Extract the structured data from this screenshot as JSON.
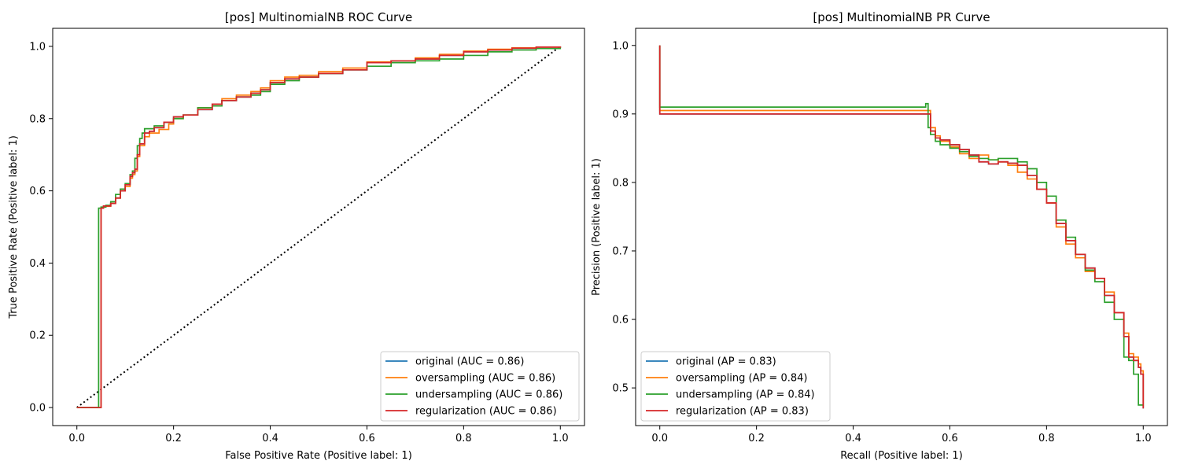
{
  "chart_data": [
    {
      "type": "line",
      "title": "[pos] MultinomialNB ROC Curve",
      "xlabel": "False Positive Rate (Positive label: 1)",
      "ylabel": "True Positive Rate (Positive label: 1)",
      "xlim": [
        -0.05,
        1.05
      ],
      "ylim": [
        -0.05,
        1.05
      ],
      "xticks": [
        "0.0",
        "0.2",
        "0.4",
        "0.6",
        "0.8",
        "1.0"
      ],
      "yticks": [
        "0.0",
        "0.2",
        "0.4",
        "0.6",
        "0.8",
        "1.0"
      ],
      "grid": false,
      "legend_position": "lower-right",
      "chance_line": {
        "x": [
          0,
          1
        ],
        "y": [
          0,
          1
        ],
        "style": "dotted",
        "color": "#000000"
      },
      "series": [
        {
          "name": "original (AUC = 0.86)",
          "color": "#1f77b4",
          "x": [
            0,
            0.05,
            0.055,
            0.07,
            0.08,
            0.09,
            0.1,
            0.11,
            0.115,
            0.12,
            0.125,
            0.13,
            0.14,
            0.15,
            0.16,
            0.18,
            0.2,
            0.22,
            0.25,
            0.28,
            0.3,
            0.33,
            0.36,
            0.38,
            0.4,
            0.43,
            0.46,
            0.5,
            0.55,
            0.6,
            0.65,
            0.7,
            0.75,
            0.8,
            0.85,
            0.9,
            0.95,
            1.0
          ],
          "y": [
            0,
            0.552,
            0.558,
            0.565,
            0.58,
            0.6,
            0.617,
            0.64,
            0.65,
            0.66,
            0.7,
            0.73,
            0.76,
            0.765,
            0.775,
            0.79,
            0.805,
            0.81,
            0.825,
            0.84,
            0.85,
            0.86,
            0.87,
            0.88,
            0.9,
            0.91,
            0.915,
            0.925,
            0.935,
            0.955,
            0.96,
            0.965,
            0.975,
            0.985,
            0.99,
            0.995,
            0.998,
            1.0
          ]
        },
        {
          "name": "oversampling (AUC = 0.86)",
          "color": "#ff7f0e",
          "x": [
            0,
            0.05,
            0.055,
            0.07,
            0.08,
            0.09,
            0.1,
            0.11,
            0.115,
            0.12,
            0.125,
            0.13,
            0.14,
            0.15,
            0.17,
            0.19,
            0.2,
            0.22,
            0.25,
            0.28,
            0.3,
            0.33,
            0.36,
            0.38,
            0.4,
            0.43,
            0.46,
            0.5,
            0.55,
            0.6,
            0.65,
            0.7,
            0.75,
            0.8,
            0.85,
            0.9,
            0.95,
            1.0
          ],
          "y": [
            0,
            0.552,
            0.557,
            0.565,
            0.58,
            0.6,
            0.612,
            0.635,
            0.645,
            0.655,
            0.695,
            0.725,
            0.75,
            0.76,
            0.77,
            0.785,
            0.8,
            0.81,
            0.83,
            0.84,
            0.855,
            0.865,
            0.875,
            0.885,
            0.905,
            0.915,
            0.92,
            0.93,
            0.94,
            0.957,
            0.96,
            0.968,
            0.978,
            0.987,
            0.992,
            0.996,
            0.998,
            1.0
          ]
        },
        {
          "name": "undersampling (AUC = 0.86)",
          "color": "#2ca02c",
          "x": [
            0,
            0.045,
            0.05,
            0.06,
            0.07,
            0.08,
            0.09,
            0.1,
            0.11,
            0.115,
            0.12,
            0.125,
            0.13,
            0.135,
            0.14,
            0.16,
            0.18,
            0.2,
            0.22,
            0.25,
            0.28,
            0.3,
            0.33,
            0.36,
            0.38,
            0.4,
            0.43,
            0.46,
            0.5,
            0.55,
            0.6,
            0.65,
            0.7,
            0.75,
            0.8,
            0.85,
            0.9,
            0.95,
            1.0
          ],
          "y": [
            0,
            0.552,
            0.555,
            0.56,
            0.57,
            0.59,
            0.605,
            0.62,
            0.645,
            0.655,
            0.69,
            0.725,
            0.745,
            0.76,
            0.772,
            0.78,
            0.79,
            0.8,
            0.81,
            0.83,
            0.835,
            0.85,
            0.86,
            0.865,
            0.875,
            0.895,
            0.905,
            0.915,
            0.925,
            0.935,
            0.945,
            0.955,
            0.96,
            0.965,
            0.975,
            0.985,
            0.99,
            0.994,
            1.0
          ]
        },
        {
          "name": "regularization (AUC = 0.86)",
          "color": "#d62728",
          "x": [
            0,
            0.05,
            0.055,
            0.07,
            0.08,
            0.09,
            0.1,
            0.11,
            0.115,
            0.12,
            0.125,
            0.13,
            0.14,
            0.15,
            0.16,
            0.18,
            0.2,
            0.22,
            0.25,
            0.28,
            0.3,
            0.33,
            0.36,
            0.38,
            0.4,
            0.43,
            0.46,
            0.5,
            0.55,
            0.6,
            0.65,
            0.7,
            0.75,
            0.8,
            0.85,
            0.9,
            0.95,
            1.0
          ],
          "y": [
            0,
            0.552,
            0.558,
            0.565,
            0.58,
            0.6,
            0.617,
            0.64,
            0.65,
            0.66,
            0.7,
            0.73,
            0.76,
            0.765,
            0.775,
            0.79,
            0.805,
            0.81,
            0.825,
            0.84,
            0.85,
            0.86,
            0.87,
            0.88,
            0.9,
            0.91,
            0.915,
            0.925,
            0.935,
            0.955,
            0.96,
            0.965,
            0.975,
            0.985,
            0.99,
            0.995,
            0.998,
            1.0
          ]
        }
      ]
    },
    {
      "type": "line",
      "title": "[pos] MultinomialNB PR Curve",
      "xlabel": "Recall (Positive label: 1)",
      "ylabel": "Precision (Positive label: 1)",
      "xlim": [
        -0.05,
        1.05
      ],
      "ylim": [
        0.445,
        1.025
      ],
      "xticks": [
        "0.0",
        "0.2",
        "0.4",
        "0.6",
        "0.8",
        "1.0"
      ],
      "yticks": [
        "0.5",
        "0.6",
        "0.7",
        "0.8",
        "0.9",
        "1.0"
      ],
      "grid": false,
      "legend_position": "lower-left",
      "series": [
        {
          "name": "original (AP = 0.83)",
          "color": "#1f77b4",
          "x": [
            0,
            0,
            0.553,
            0.56,
            0.57,
            0.58,
            0.6,
            0.62,
            0.64,
            0.66,
            0.68,
            0.7,
            0.72,
            0.74,
            0.76,
            0.78,
            0.8,
            0.82,
            0.84,
            0.86,
            0.88,
            0.9,
            0.92,
            0.94,
            0.96,
            0.97,
            0.98,
            0.99,
            0.995,
            1.0
          ],
          "y": [
            1.0,
            0.9,
            0.9,
            0.875,
            0.865,
            0.862,
            0.855,
            0.848,
            0.84,
            0.83,
            0.827,
            0.83,
            0.828,
            0.825,
            0.81,
            0.79,
            0.77,
            0.74,
            0.715,
            0.695,
            0.675,
            0.66,
            0.635,
            0.61,
            0.575,
            0.545,
            0.54,
            0.53,
            0.52,
            0.47
          ]
        },
        {
          "name": "oversampling (AP = 0.84)",
          "color": "#ff7f0e",
          "x": [
            0,
            0,
            0.555,
            0.56,
            0.57,
            0.58,
            0.6,
            0.62,
            0.64,
            0.66,
            0.68,
            0.7,
            0.72,
            0.74,
            0.76,
            0.78,
            0.8,
            0.82,
            0.84,
            0.86,
            0.88,
            0.9,
            0.92,
            0.94,
            0.96,
            0.97,
            0.98,
            0.99,
            0.995,
            1.0
          ],
          "y": [
            1.0,
            0.905,
            0.905,
            0.88,
            0.868,
            0.86,
            0.852,
            0.842,
            0.835,
            0.84,
            0.833,
            0.83,
            0.825,
            0.815,
            0.805,
            0.79,
            0.77,
            0.735,
            0.71,
            0.69,
            0.67,
            0.66,
            0.64,
            0.61,
            0.58,
            0.55,
            0.545,
            0.535,
            0.525,
            0.472
          ]
        },
        {
          "name": "undersampling (AP = 0.84)",
          "color": "#2ca02c",
          "x": [
            0,
            0,
            0.52,
            0.55,
            0.555,
            0.56,
            0.57,
            0.58,
            0.6,
            0.62,
            0.64,
            0.66,
            0.68,
            0.7,
            0.72,
            0.74,
            0.76,
            0.78,
            0.8,
            0.82,
            0.84,
            0.86,
            0.88,
            0.9,
            0.92,
            0.94,
            0.96,
            0.97,
            0.98,
            0.99,
            1.0
          ],
          "y": [
            1.0,
            0.91,
            0.91,
            0.915,
            0.88,
            0.87,
            0.86,
            0.855,
            0.85,
            0.845,
            0.838,
            0.835,
            0.833,
            0.835,
            0.835,
            0.83,
            0.82,
            0.8,
            0.78,
            0.745,
            0.72,
            0.695,
            0.672,
            0.655,
            0.625,
            0.6,
            0.545,
            0.54,
            0.52,
            0.475,
            0.475
          ]
        },
        {
          "name": "regularization (AP = 0.83)",
          "color": "#d62728",
          "x": [
            0,
            0,
            0.553,
            0.56,
            0.57,
            0.58,
            0.6,
            0.62,
            0.64,
            0.66,
            0.68,
            0.7,
            0.72,
            0.74,
            0.76,
            0.78,
            0.8,
            0.82,
            0.84,
            0.86,
            0.88,
            0.9,
            0.92,
            0.94,
            0.96,
            0.97,
            0.98,
            0.99,
            0.995,
            1.0
          ],
          "y": [
            1.0,
            0.9,
            0.9,
            0.875,
            0.865,
            0.862,
            0.855,
            0.848,
            0.84,
            0.83,
            0.827,
            0.83,
            0.828,
            0.825,
            0.81,
            0.79,
            0.77,
            0.74,
            0.715,
            0.695,
            0.675,
            0.66,
            0.635,
            0.61,
            0.575,
            0.545,
            0.54,
            0.53,
            0.52,
            0.47
          ]
        }
      ]
    }
  ]
}
